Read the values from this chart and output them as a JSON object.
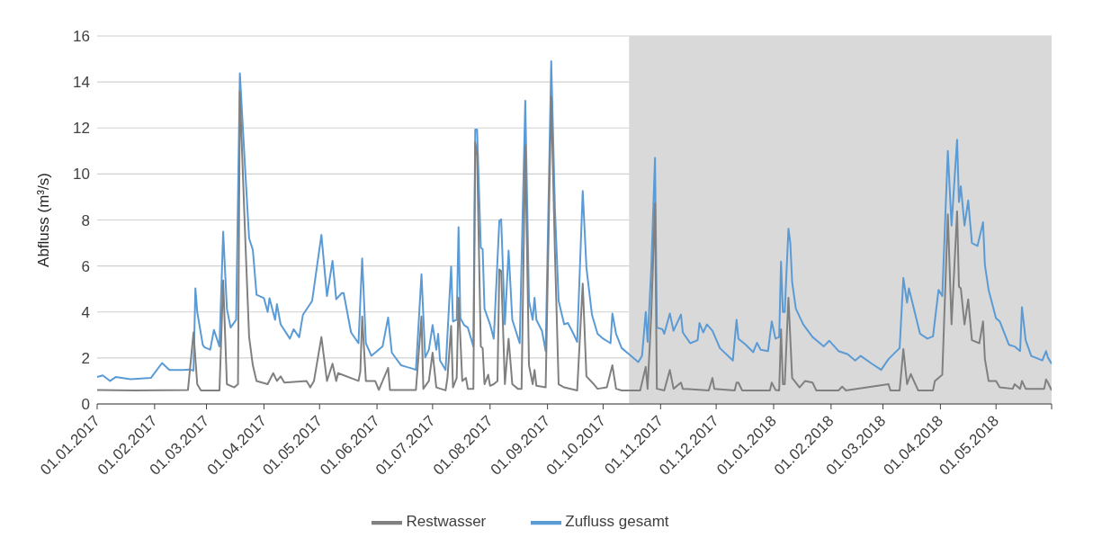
{
  "chart_data": {
    "type": "line",
    "ylabel": "Abfluss (m³/s)",
    "ylim": [
      0,
      16
    ],
    "yticks": [
      0,
      2,
      4,
      6,
      8,
      10,
      12,
      14,
      16
    ],
    "xlim": [
      "2017-01-01",
      "2018-05-31"
    ],
    "xticks": [
      {
        "value": "2017-01-01",
        "label": "01.01.2017"
      },
      {
        "value": "2017-02-01",
        "label": "01.02.2017"
      },
      {
        "value": "2017-03-01",
        "label": "01.03.2017"
      },
      {
        "value": "2017-04-01",
        "label": "01.04.2017"
      },
      {
        "value": "2017-05-01",
        "label": "01.05.2017"
      },
      {
        "value": "2017-06-01",
        "label": "01.06.2017"
      },
      {
        "value": "2017-07-01",
        "label": "01.07.2017"
      },
      {
        "value": "2017-08-01",
        "label": "01.08.2017"
      },
      {
        "value": "2017-09-01",
        "label": "01.09.2017"
      },
      {
        "value": "2017-10-01",
        "label": "01.10.2017"
      },
      {
        "value": "2017-11-01",
        "label": "01.11.2017"
      },
      {
        "value": "2017-12-01",
        "label": "01.12.2017"
      },
      {
        "value": "2018-01-01",
        "label": "01.01.2018"
      },
      {
        "value": "2018-02-01",
        "label": "01.02.2018"
      },
      {
        "value": "2018-03-01",
        "label": "01.03.2018"
      },
      {
        "value": "2018-04-01",
        "label": "01.04.2018"
      },
      {
        "value": "2018-05-01",
        "label": "01.05.2018"
      },
      {
        "value": "2018-05-31",
        "label": null
      }
    ],
    "grid": "y",
    "legend": "bottom",
    "marker": "none",
    "line_style": "solid",
    "bands": [
      {
        "axis": "x",
        "from": "2017-10-15",
        "to": "2018-05-31",
        "color": "#d9d9d9"
      }
    ],
    "series": [
      {
        "name": "Zufluss gesamt",
        "color": "#5b9bd5",
        "x": [
          "2017-01-01",
          "2017-01-04",
          "2017-01-08",
          "2017-01-11",
          "2017-01-19",
          "2017-01-30",
          "2017-02-05",
          "2017-02-09",
          "2017-02-16",
          "2017-02-20",
          "2017-02-22",
          "2017-02-23",
          "2017-02-24",
          "2017-02-27",
          "2017-02-28",
          "2017-03-03",
          "2017-03-05",
          "2017-03-08",
          "2017-03-10",
          "2017-03-12",
          "2017-03-14",
          "2017-03-17",
          "2017-03-19",
          "2017-03-22",
          "2017-03-24",
          "2017-03-26",
          "2017-03-28",
          "2017-04-01",
          "2017-04-03",
          "2017-04-04",
          "2017-04-07",
          "2017-04-08",
          "2017-04-10",
          "2017-04-15",
          "2017-04-17",
          "2017-04-20",
          "2017-04-22",
          "2017-04-27",
          "2017-05-02",
          "2017-05-05",
          "2017-05-08",
          "2017-05-10",
          "2017-05-13",
          "2017-05-14",
          "2017-05-18",
          "2017-05-22",
          "2017-05-24",
          "2017-05-26",
          "2017-05-29",
          "2017-06-01",
          "2017-06-04",
          "2017-06-07",
          "2017-06-09",
          "2017-06-14",
          "2017-06-17",
          "2017-06-20",
          "2017-06-22",
          "2017-06-25",
          "2017-06-27",
          "2017-06-29",
          "2017-07-01",
          "2017-07-03",
          "2017-07-04",
          "2017-07-05",
          "2017-07-08",
          "2017-07-11",
          "2017-07-12",
          "2017-07-14",
          "2017-07-15",
          "2017-07-16",
          "2017-07-18",
          "2017-07-20",
          "2017-07-23",
          "2017-07-24",
          "2017-07-25",
          "2017-07-27",
          "2017-07-28",
          "2017-07-29",
          "2017-08-01",
          "2017-08-03",
          "2017-08-06",
          "2017-08-07",
          "2017-08-09",
          "2017-08-11",
          "2017-08-13",
          "2017-08-17",
          "2017-08-20",
          "2017-08-22",
          "2017-08-24",
          "2017-08-25",
          "2017-08-26",
          "2017-08-29",
          "2017-08-31",
          "2017-09-03",
          "2017-09-05",
          "2017-09-07",
          "2017-09-10",
          "2017-09-12",
          "2017-09-15",
          "2017-09-17",
          "2017-09-20",
          "2017-09-22",
          "2017-09-25",
          "2017-09-28",
          "2017-10-01",
          "2017-10-05",
          "2017-10-06",
          "2017-10-08",
          "2017-10-11",
          "2017-10-15",
          "2017-10-20",
          "2017-10-22",
          "2017-10-24",
          "2017-10-25",
          "2017-10-27",
          "2017-10-29",
          "2017-10-30",
          "2017-11-02",
          "2017-11-03",
          "2017-11-06",
          "2017-11-08",
          "2017-11-12",
          "2017-11-13",
          "2017-11-17",
          "2017-11-21",
          "2017-11-22",
          "2017-11-24",
          "2017-11-26",
          "2017-11-29",
          "2017-12-03",
          "2017-12-10",
          "2017-12-12",
          "2017-12-13",
          "2017-12-17",
          "2017-12-21",
          "2017-12-23",
          "2017-12-25",
          "2017-12-29",
          "2017-12-31",
          "2018-01-02",
          "2018-01-04",
          "2018-01-05",
          "2018-01-06",
          "2018-01-07",
          "2018-01-09",
          "2018-01-10",
          "2018-01-11",
          "2018-01-13",
          "2018-01-17",
          "2018-01-22",
          "2018-01-26",
          "2018-01-28",
          "2018-01-31",
          "2018-02-05",
          "2018-02-10",
          "2018-02-14",
          "2018-02-17",
          "2018-02-23",
          "2018-02-28",
          "2018-03-04",
          "2018-03-10",
          "2018-03-12",
          "2018-03-14",
          "2018-03-15",
          "2018-03-21",
          "2018-03-25",
          "2018-03-28",
          "2018-03-31",
          "2018-04-02",
          "2018-04-05",
          "2018-04-07",
          "2018-04-10",
          "2018-04-11",
          "2018-04-12",
          "2018-04-14",
          "2018-04-16",
          "2018-04-18",
          "2018-04-21",
          "2018-04-24",
          "2018-04-25",
          "2018-04-27",
          "2018-05-01",
          "2018-05-03",
          "2018-05-08",
          "2018-05-11",
          "2018-05-14",
          "2018-05-15",
          "2018-05-17",
          "2018-05-20",
          "2018-05-26",
          "2018-05-28",
          "2018-05-29",
          "2018-05-31"
        ],
        "values": [
          1.17,
          1.24,
          1.0,
          1.17,
          1.08,
          1.13,
          1.78,
          1.48,
          1.48,
          1.5,
          1.45,
          5.03,
          4.0,
          2.57,
          2.46,
          2.36,
          3.22,
          2.5,
          7.49,
          4.14,
          3.32,
          3.66,
          14.38,
          10.0,
          7.2,
          6.7,
          4.75,
          4.6,
          4.0,
          4.6,
          3.66,
          4.34,
          3.46,
          2.84,
          3.25,
          2.9,
          3.87,
          4.48,
          7.35,
          4.69,
          6.22,
          4.55,
          4.82,
          4.82,
          3.11,
          2.64,
          6.33,
          2.64,
          2.09,
          2.3,
          2.5,
          3.76,
          2.23,
          1.68,
          1.61,
          1.54,
          1.48,
          5.64,
          2.02,
          2.36,
          3.43,
          2.36,
          3.05,
          1.89,
          1.48,
          5.98,
          3.59,
          3.66,
          7.69,
          3.73,
          3.43,
          3.32,
          2.5,
          11.93,
          11.93,
          6.8,
          6.73,
          4.14,
          3.46,
          2.84,
          7.96,
          8.03,
          3.46,
          6.67,
          3.66,
          2.64,
          13.18,
          4.48,
          3.66,
          4.62,
          3.66,
          3.18,
          2.3,
          14.9,
          8.5,
          4.48,
          3.46,
          3.52,
          3.05,
          2.7,
          9.26,
          5.92,
          3.87,
          3.05,
          2.84,
          2.64,
          3.93,
          3.05,
          2.43,
          2.16,
          1.82,
          2.09,
          4.0,
          2.7,
          5.92,
          10.7,
          3.32,
          3.25,
          3.05,
          3.93,
          3.18,
          3.89,
          3.11,
          2.64,
          2.77,
          3.52,
          3.11,
          3.46,
          3.18,
          2.43,
          1.89,
          3.66,
          2.84,
          2.57,
          2.25,
          2.66,
          2.36,
          2.3,
          3.59,
          2.84,
          2.91,
          6.19,
          4.0,
          4.0,
          7.62,
          7.0,
          5.3,
          4.14,
          3.46,
          2.91,
          2.64,
          2.5,
          2.75,
          2.3,
          2.16,
          1.89,
          2.09,
          1.75,
          1.48,
          1.95,
          2.43,
          5.48,
          4.41,
          5.03,
          3.05,
          2.84,
          2.94,
          4.96,
          4.69,
          11.0,
          7.76,
          11.49,
          8.78,
          9.47,
          7.76,
          8.85,
          7.0,
          6.87,
          7.9,
          6.05,
          4.96,
          3.73,
          3.59,
          2.57,
          2.5,
          2.3,
          4.21,
          2.77,
          2.09,
          1.89,
          2.3,
          2.02,
          1.75
        ]
      },
      {
        "name": "Restwasser",
        "color": "#808080",
        "x": [
          "2017-01-01",
          "2017-01-21",
          "2017-02-19",
          "2017-02-22",
          "2017-02-24",
          "2017-02-26",
          "2017-03-08",
          "2017-03-10",
          "2017-03-12",
          "2017-03-16",
          "2017-03-18",
          "2017-03-19",
          "2017-03-22",
          "2017-03-24",
          "2017-03-26",
          "2017-03-28",
          "2017-04-03",
          "2017-04-06",
          "2017-04-08",
          "2017-04-10",
          "2017-04-12",
          "2017-04-24",
          "2017-04-26",
          "2017-04-28",
          "2017-05-02",
          "2017-05-05",
          "2017-05-08",
          "2017-05-10",
          "2017-05-11",
          "2017-05-22",
          "2017-05-23",
          "2017-05-24",
          "2017-05-26",
          "2017-05-31",
          "2017-06-02",
          "2017-06-07",
          "2017-06-08",
          "2017-06-22",
          "2017-06-25",
          "2017-06-26",
          "2017-06-29",
          "2017-07-01",
          "2017-07-03",
          "2017-07-08",
          "2017-07-09",
          "2017-07-11",
          "2017-07-12",
          "2017-07-14",
          "2017-07-15",
          "2017-07-17",
          "2017-07-19",
          "2017-07-20",
          "2017-07-23",
          "2017-07-24",
          "2017-07-25",
          "2017-07-27",
          "2017-07-28",
          "2017-07-29",
          "2017-07-31",
          "2017-08-01",
          "2017-08-03",
          "2017-08-05",
          "2017-08-06",
          "2017-08-07",
          "2017-08-09",
          "2017-08-11",
          "2017-08-13",
          "2017-08-16",
          "2017-08-18",
          "2017-08-20",
          "2017-08-22",
          "2017-08-24",
          "2017-08-25",
          "2017-08-26",
          "2017-08-31",
          "2017-09-03",
          "2017-09-05",
          "2017-09-07",
          "2017-09-10",
          "2017-09-17",
          "2017-09-20",
          "2017-09-22",
          "2017-09-26",
          "2017-09-28",
          "2017-10-03",
          "2017-10-06",
          "2017-10-08",
          "2017-10-11",
          "2017-10-21",
          "2017-10-24",
          "2017-10-25",
          "2017-10-27",
          "2017-10-29",
          "2017-10-30",
          "2017-11-03",
          "2017-11-06",
          "2017-11-08",
          "2017-11-12",
          "2017-11-13",
          "2017-11-27",
          "2017-11-29",
          "2017-11-30",
          "2017-12-11",
          "2017-12-12",
          "2017-12-13",
          "2017-12-15",
          "2017-12-30",
          "2017-12-31",
          "2018-01-02",
          "2018-01-04",
          "2018-01-05",
          "2018-01-06",
          "2018-01-07",
          "2018-01-09",
          "2018-01-11",
          "2018-01-15",
          "2018-01-18",
          "2018-01-22",
          "2018-01-24",
          "2018-02-05",
          "2018-02-07",
          "2018-02-09",
          "2018-03-04",
          "2018-03-05",
          "2018-03-10",
          "2018-03-12",
          "2018-03-14",
          "2018-03-16",
          "2018-03-20",
          "2018-03-28",
          "2018-03-29",
          "2018-03-31",
          "2018-04-02",
          "2018-04-05",
          "2018-04-07",
          "2018-04-10",
          "2018-04-11",
          "2018-04-12",
          "2018-04-14",
          "2018-04-16",
          "2018-04-18",
          "2018-04-22",
          "2018-04-24",
          "2018-04-25",
          "2018-04-27",
          "2018-05-01",
          "2018-05-03",
          "2018-05-10",
          "2018-05-11",
          "2018-05-14",
          "2018-05-15",
          "2018-05-17",
          "2018-05-27",
          "2018-05-28",
          "2018-05-29",
          "2018-05-31"
        ],
        "values": [
          0.61,
          0.59,
          0.61,
          3.11,
          0.86,
          0.59,
          0.59,
          5.37,
          0.86,
          0.72,
          0.86,
          13.57,
          7.0,
          2.91,
          1.68,
          1.0,
          0.86,
          1.34,
          1.0,
          1.2,
          0.93,
          1.0,
          0.72,
          1.0,
          2.91,
          1.0,
          1.75,
          1.0,
          1.34,
          1.0,
          1.41,
          3.8,
          1.0,
          1.0,
          0.61,
          1.57,
          0.61,
          0.61,
          3.8,
          0.66,
          1.0,
          2.23,
          0.72,
          0.59,
          1.13,
          3.39,
          0.72,
          1.13,
          4.62,
          1.0,
          1.13,
          0.66,
          0.66,
          11.38,
          10.83,
          2.5,
          2.43,
          0.86,
          1.27,
          0.79,
          0.86,
          1.0,
          5.85,
          5.78,
          0.86,
          2.84,
          0.86,
          0.66,
          0.66,
          11.24,
          1.68,
          0.86,
          1.48,
          0.79,
          0.72,
          13.36,
          6.6,
          0.86,
          0.72,
          0.59,
          5.23,
          1.2,
          0.86,
          0.66,
          0.72,
          1.68,
          0.66,
          0.59,
          0.59,
          1.61,
          0.66,
          3.93,
          8.72,
          0.66,
          0.59,
          1.48,
          0.66,
          0.93,
          0.66,
          0.59,
          1.13,
          0.66,
          0.59,
          0.93,
          0.93,
          0.59,
          0.59,
          0.93,
          0.61,
          0.59,
          3.25,
          0.86,
          0.86,
          4.62,
          1.13,
          0.72,
          1.0,
          0.93,
          0.59,
          0.59,
          0.75,
          0.59,
          0.86,
          0.59,
          0.59,
          2.39,
          0.86,
          1.3,
          0.59,
          0.59,
          1.0,
          1.13,
          1.27,
          8.24,
          3.46,
          8.37,
          5.1,
          5.03,
          3.46,
          4.55,
          2.77,
          2.64,
          3.59,
          1.95,
          1.0,
          1.0,
          0.72,
          0.66,
          0.86,
          0.66,
          1.0,
          0.66,
          0.66,
          1.07,
          0.93,
          0.59
        ]
      }
    ]
  }
}
